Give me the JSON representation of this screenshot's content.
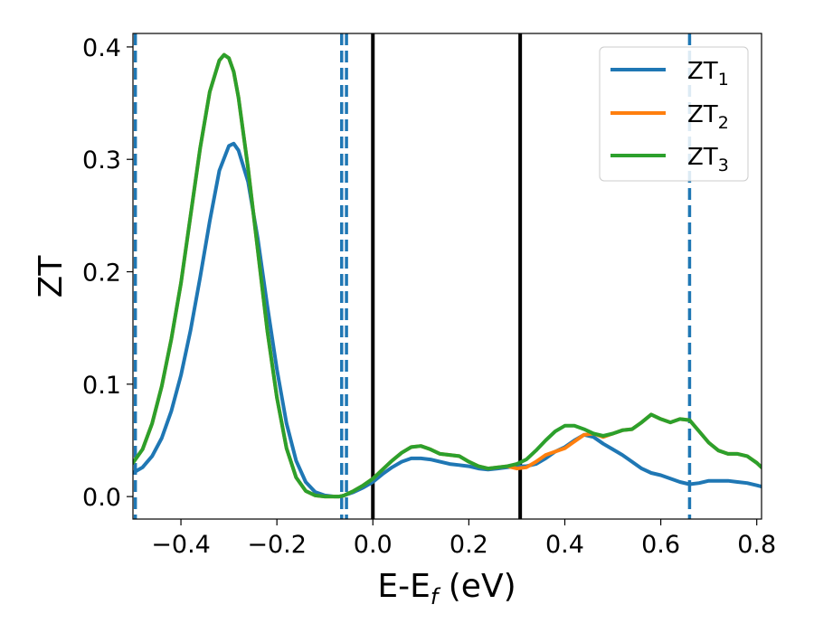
{
  "chart_data": {
    "type": "line",
    "xlabel": "E-E",
    "xlabel_sub": "f",
    "xlabel_unit": " (eV)",
    "ylabel": "ZT",
    "xlim": [
      -0.5,
      0.81
    ],
    "ylim": [
      -0.02,
      0.412
    ],
    "xticks": [
      -0.4,
      -0.2,
      0.0,
      0.2,
      0.4,
      0.6,
      0.8
    ],
    "xtick_labels": [
      "−0.4",
      "−0.2",
      "0.0",
      "0.2",
      "0.4",
      "0.6",
      "0.8"
    ],
    "yticks": [
      0.0,
      0.1,
      0.2,
      0.3,
      0.4
    ],
    "ytick_labels": [
      "0.0",
      "0.1",
      "0.2",
      "0.3",
      "0.4"
    ],
    "grid": false,
    "legend_position": "top-right",
    "series": [
      {
        "name": "ZT",
        "sub": "1",
        "color": "#1f77b4",
        "x": [
          -0.5,
          -0.48,
          -0.46,
          -0.44,
          -0.42,
          -0.4,
          -0.38,
          -0.36,
          -0.34,
          -0.32,
          -0.3,
          -0.29,
          -0.28,
          -0.26,
          -0.24,
          -0.22,
          -0.2,
          -0.18,
          -0.16,
          -0.14,
          -0.12,
          -0.1,
          -0.08,
          -0.07,
          -0.06,
          -0.04,
          -0.02,
          0.0,
          0.02,
          0.04,
          0.06,
          0.08,
          0.1,
          0.12,
          0.14,
          0.16,
          0.18,
          0.2,
          0.22,
          0.24,
          0.26,
          0.28,
          0.3,
          0.32,
          0.34,
          0.36,
          0.38,
          0.4,
          0.42,
          0.44,
          0.46,
          0.48,
          0.5,
          0.52,
          0.54,
          0.56,
          0.58,
          0.6,
          0.62,
          0.64,
          0.66,
          0.68,
          0.7,
          0.72,
          0.74,
          0.76,
          0.78,
          0.8,
          0.81
        ],
        "y": [
          0.021,
          0.026,
          0.036,
          0.052,
          0.076,
          0.108,
          0.148,
          0.195,
          0.245,
          0.29,
          0.312,
          0.314,
          0.308,
          0.28,
          0.23,
          0.17,
          0.113,
          0.065,
          0.032,
          0.013,
          0.004,
          0.001,
          0.0,
          0.0,
          0.001,
          0.004,
          0.008,
          0.013,
          0.02,
          0.026,
          0.031,
          0.034,
          0.034,
          0.033,
          0.031,
          0.029,
          0.028,
          0.027,
          0.025,
          0.024,
          0.025,
          0.026,
          0.027,
          0.027,
          0.029,
          0.034,
          0.04,
          0.044,
          0.05,
          0.055,
          0.053,
          0.047,
          0.042,
          0.037,
          0.031,
          0.025,
          0.021,
          0.019,
          0.016,
          0.013,
          0.011,
          0.012,
          0.014,
          0.014,
          0.014,
          0.013,
          0.012,
          0.01,
          0.009
        ]
      },
      {
        "name": "ZT",
        "sub": "2",
        "color": "#ff7f0e",
        "x": [
          -0.5,
          -0.48,
          -0.46,
          -0.44,
          -0.42,
          -0.4,
          -0.38,
          -0.36,
          -0.34,
          -0.32,
          -0.31,
          -0.3,
          -0.29,
          -0.28,
          -0.26,
          -0.24,
          -0.22,
          -0.2,
          -0.18,
          -0.16,
          -0.14,
          -0.12,
          -0.1,
          -0.08,
          -0.07,
          -0.06,
          -0.04,
          -0.02,
          0.0,
          0.02,
          0.04,
          0.06,
          0.08,
          0.1,
          0.12,
          0.14,
          0.16,
          0.18,
          0.2,
          0.22,
          0.24,
          0.26,
          0.28,
          0.3,
          0.32,
          0.34,
          0.36,
          0.38,
          0.4,
          0.42,
          0.44,
          0.46,
          0.48,
          0.5,
          0.52,
          0.54,
          0.56,
          0.58,
          0.6,
          0.62,
          0.64,
          0.66,
          0.68,
          0.7,
          0.72,
          0.74,
          0.76,
          0.78,
          0.8,
          0.81
        ],
        "y": [
          0.03,
          0.042,
          0.065,
          0.098,
          0.14,
          0.19,
          0.25,
          0.31,
          0.36,
          0.388,
          0.393,
          0.39,
          0.378,
          0.355,
          0.292,
          0.22,
          0.148,
          0.088,
          0.043,
          0.017,
          0.005,
          0.001,
          0.0,
          0.0,
          0.0,
          0.001,
          0.005,
          0.01,
          0.016,
          0.024,
          0.032,
          0.039,
          0.044,
          0.045,
          0.042,
          0.038,
          0.037,
          0.036,
          0.031,
          0.027,
          0.025,
          0.026,
          0.027,
          0.025,
          0.026,
          0.031,
          0.037,
          0.04,
          0.043,
          0.049,
          0.055,
          0.056,
          0.053,
          0.056,
          0.059,
          0.06,
          0.066,
          0.073,
          0.069,
          0.066,
          0.069,
          0.068,
          0.058,
          0.048,
          0.041,
          0.038,
          0.038,
          0.036,
          0.03,
          0.026
        ]
      },
      {
        "name": "ZT",
        "sub": "3",
        "color": "#2ca02c",
        "x": [
          -0.5,
          -0.48,
          -0.46,
          -0.44,
          -0.42,
          -0.4,
          -0.38,
          -0.36,
          -0.34,
          -0.32,
          -0.31,
          -0.3,
          -0.29,
          -0.28,
          -0.26,
          -0.24,
          -0.22,
          -0.2,
          -0.18,
          -0.16,
          -0.14,
          -0.12,
          -0.1,
          -0.08,
          -0.07,
          -0.06,
          -0.04,
          -0.02,
          0.0,
          0.02,
          0.04,
          0.06,
          0.08,
          0.1,
          0.12,
          0.14,
          0.16,
          0.18,
          0.2,
          0.22,
          0.24,
          0.26,
          0.28,
          0.3,
          0.32,
          0.34,
          0.36,
          0.38,
          0.4,
          0.42,
          0.44,
          0.46,
          0.48,
          0.5,
          0.52,
          0.54,
          0.56,
          0.58,
          0.6,
          0.62,
          0.64,
          0.66,
          0.68,
          0.7,
          0.72,
          0.74,
          0.76,
          0.78,
          0.8,
          0.81
        ],
        "y": [
          0.03,
          0.042,
          0.065,
          0.098,
          0.14,
          0.19,
          0.25,
          0.31,
          0.36,
          0.388,
          0.393,
          0.39,
          0.378,
          0.355,
          0.292,
          0.22,
          0.148,
          0.088,
          0.043,
          0.017,
          0.005,
          0.001,
          0.0,
          0.0,
          0.0,
          0.001,
          0.005,
          0.01,
          0.016,
          0.024,
          0.032,
          0.039,
          0.044,
          0.045,
          0.042,
          0.038,
          0.037,
          0.036,
          0.031,
          0.027,
          0.025,
          0.026,
          0.027,
          0.029,
          0.033,
          0.041,
          0.05,
          0.058,
          0.063,
          0.063,
          0.06,
          0.056,
          0.054,
          0.056,
          0.059,
          0.06,
          0.066,
          0.073,
          0.069,
          0.066,
          0.069,
          0.068,
          0.058,
          0.048,
          0.041,
          0.038,
          0.038,
          0.036,
          0.03,
          0.026
        ]
      }
    ],
    "dashed_vlines": {
      "x": [
        -0.495,
        -0.065,
        -0.055,
        0.66
      ],
      "color": "#1f77b4"
    },
    "solid_vlines": {
      "x": [
        0.0,
        0.307
      ],
      "color": "#000000"
    }
  }
}
